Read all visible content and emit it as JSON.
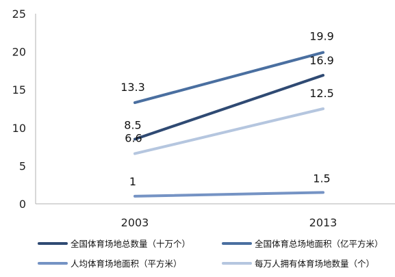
{
  "chart_data": {
    "type": "line",
    "categories": [
      "2003",
      "2013"
    ],
    "ylim": [
      0,
      25
    ],
    "yticks": [
      0,
      5,
      10,
      15,
      20,
      25
    ],
    "grid": false,
    "legend_position": "bottom",
    "series": [
      {
        "name": "全国体育场地总数量（十万个）",
        "values": [
          8.5,
          16.9
        ],
        "labels": [
          "8.5",
          "16.9"
        ],
        "color": "#2f4a73"
      },
      {
        "name": "全国体育总场地面积（亿平方米）",
        "values": [
          13.3,
          19.9
        ],
        "labels": [
          "13.3",
          "19.9"
        ],
        "color": "#4a6fa0"
      },
      {
        "name": "人均体育场地面积（平方米）",
        "values": [
          1,
          1.5
        ],
        "labels": [
          "1",
          "1.5"
        ],
        "color": "#7593c4"
      },
      {
        "name": "每万人拥有体育场地数量（个）",
        "values": [
          6.6,
          12.5
        ],
        "labels": [
          "6.6",
          "12.5"
        ],
        "color": "#b5c6df"
      }
    ]
  }
}
